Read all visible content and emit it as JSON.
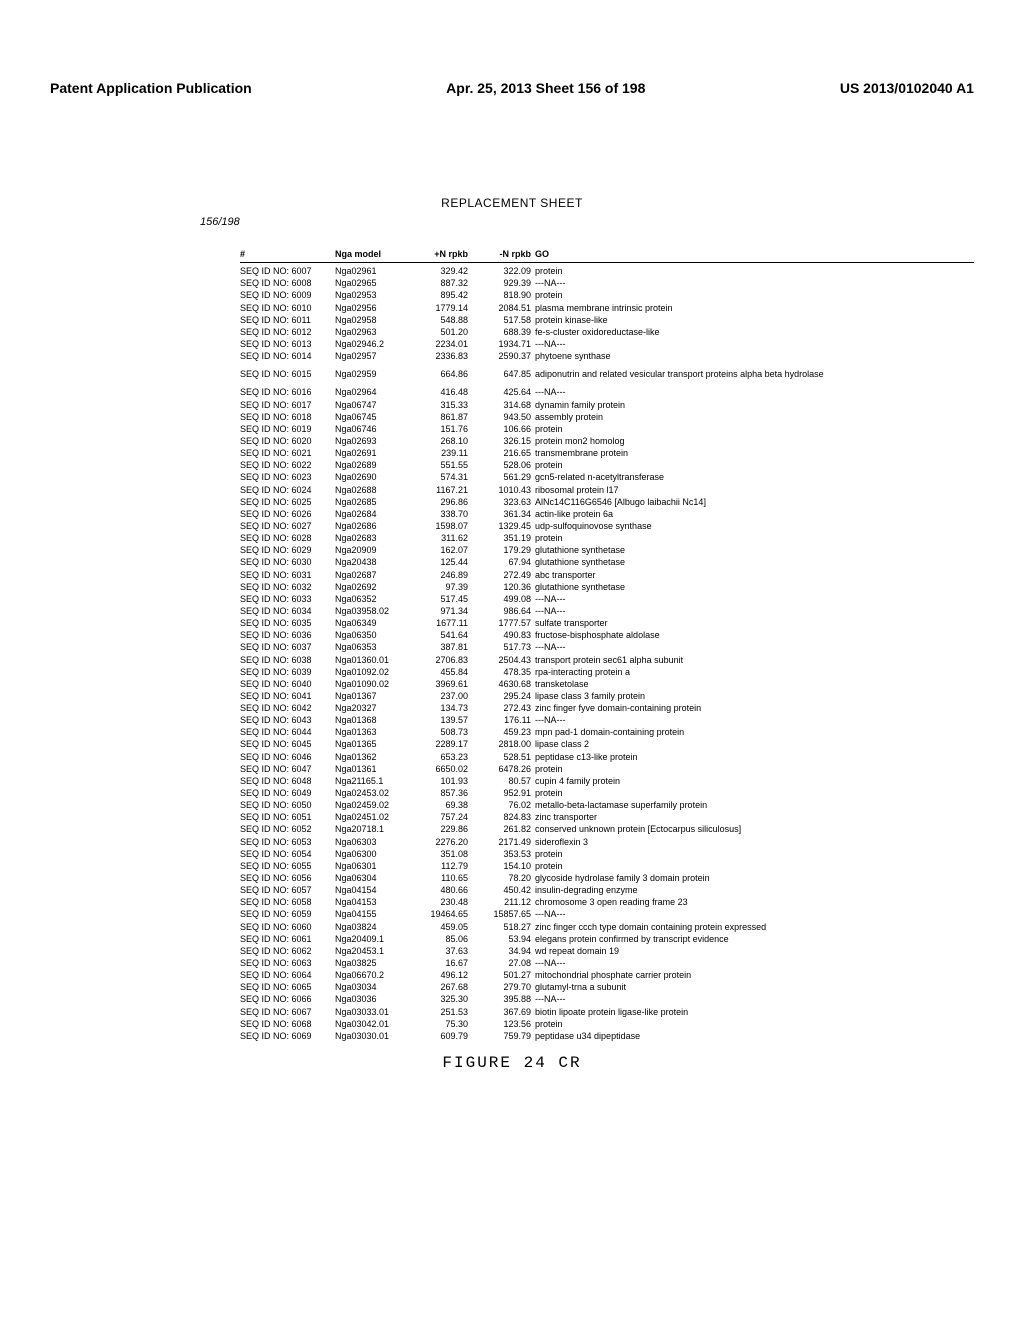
{
  "header": {
    "left": "Patent Application Publication",
    "center": "Apr. 25, 2013  Sheet 156 of 198",
    "right": "US 2013/0102040 A1"
  },
  "replacement_label": "REPLACEMENT SHEET",
  "sheet_number": "156/198",
  "table": {
    "columns": [
      "#",
      "Nga model",
      "+N rpkb",
      "-N rpkb",
      "GO"
    ],
    "rows": [
      [
        "SEQ ID NO: 6007",
        "Nga02961",
        "329.42",
        "322.09",
        "protein"
      ],
      [
        "SEQ ID NO: 6008",
        "Nga02965",
        "887.32",
        "929.39",
        "---NA---"
      ],
      [
        "SEQ ID NO: 6009",
        "Nga02953",
        "895.42",
        "818.90",
        "protein"
      ],
      [
        "SEQ ID NO: 6010",
        "Nga02956",
        "1779.14",
        "2084.51",
        "plasma membrane intrinsic protein"
      ],
      [
        "SEQ ID NO: 6011",
        "Nga02958",
        "548.88",
        "517.58",
        "protein kinase-like"
      ],
      [
        "SEQ ID NO: 6012",
        "Nga02963",
        "501.20",
        "688.39",
        "fe-s-cluster oxidoreductase-like"
      ],
      [
        "SEQ ID NO: 6013",
        "Nga02946.2",
        "2234.01",
        "1934.71",
        "---NA---"
      ],
      [
        "SEQ ID NO: 6014",
        "Nga02957",
        "2336.83",
        "2590.37",
        "phytoene synthase"
      ],
      [
        "SEQ ID NO: 6015",
        "Nga02959",
        "664.86",
        "647.85",
        "adiponutrin and related vesicular transport proteins alpha beta hydrolase"
      ],
      [
        "SEQ ID NO: 6016",
        "Nga02964",
        "416.48",
        "425.64",
        "---NA---"
      ],
      [
        "SEQ ID NO: 6017",
        "Nga06747",
        "315.33",
        "314.68",
        "dynamin family protein"
      ],
      [
        "SEQ ID NO: 6018",
        "Nga06745",
        "861.87",
        "943.50",
        "assembly protein"
      ],
      [
        "SEQ ID NO: 6019",
        "Nga06746",
        "151.76",
        "106.66",
        "protein"
      ],
      [
        "SEQ ID NO: 6020",
        "Nga02693",
        "268.10",
        "326.15",
        "protein mon2 homolog"
      ],
      [
        "SEQ ID NO: 6021",
        "Nga02691",
        "239.11",
        "216.65",
        "transmembrane protein"
      ],
      [
        "SEQ ID NO: 6022",
        "Nga02689",
        "551.55",
        "528.06",
        "protein"
      ],
      [
        "SEQ ID NO: 6023",
        "Nga02690",
        "574.31",
        "561.29",
        "gcn5-related n-acetyltransferase"
      ],
      [
        "SEQ ID NO: 6024",
        "Nga02688",
        "1167.21",
        "1010.43",
        "ribosomal protein l17"
      ],
      [
        "SEQ ID NO: 6025",
        "Nga02685",
        "296.86",
        "323.63",
        "AlNc14C116G6546 [Albugo laibachii Nc14]"
      ],
      [
        "SEQ ID NO: 6026",
        "Nga02684",
        "338.70",
        "361.34",
        "actin-like protein 6a"
      ],
      [
        "SEQ ID NO: 6027",
        "Nga02686",
        "1598.07",
        "1329.45",
        "udp-sulfoquinovose synthase"
      ],
      [
        "SEQ ID NO: 6028",
        "Nga02683",
        "311.62",
        "351.19",
        "protein"
      ],
      [
        "SEQ ID NO: 6029",
        "Nga20909",
        "162.07",
        "179.29",
        "glutathione synthetase"
      ],
      [
        "SEQ ID NO: 6030",
        "Nga20438",
        "125.44",
        "67.94",
        "glutathione synthetase"
      ],
      [
        "SEQ ID NO: 6031",
        "Nga02687",
        "246.89",
        "272.49",
        "abc transporter"
      ],
      [
        "SEQ ID NO: 6032",
        "Nga02692",
        "97.39",
        "120.36",
        "glutathione synthetase"
      ],
      [
        "SEQ ID NO: 6033",
        "Nga06352",
        "517.45",
        "499.08",
        "---NA---"
      ],
      [
        "SEQ ID NO: 6034",
        "Nga03958.02",
        "971.34",
        "986.64",
        "---NA---"
      ],
      [
        "SEQ ID NO: 6035",
        "Nga06349",
        "1677.11",
        "1777.57",
        "sulfate transporter"
      ],
      [
        "SEQ ID NO: 6036",
        "Nga06350",
        "541.64",
        "490.83",
        "fructose-bisphosphate aldolase"
      ],
      [
        "SEQ ID NO: 6037",
        "Nga06353",
        "387.81",
        "517.73",
        "---NA---"
      ],
      [
        "SEQ ID NO: 6038",
        "Nga01360.01",
        "2706.83",
        "2504.43",
        "transport protein sec61 alpha subunit"
      ],
      [
        "SEQ ID NO: 6039",
        "Nga01092.02",
        "455.84",
        "478.35",
        "rpa-interacting protein a"
      ],
      [
        "SEQ ID NO: 6040",
        "Nga01090.02",
        "3969.61",
        "4630.68",
        "transketolase"
      ],
      [
        "SEQ ID NO: 6041",
        "Nga01367",
        "237.00",
        "295.24",
        "lipase class 3 family protein"
      ],
      [
        "SEQ ID NO: 6042",
        "Nga20327",
        "134.73",
        "272.43",
        "zinc finger fyve domain-containing protein"
      ],
      [
        "SEQ ID NO: 6043",
        "Nga01368",
        "139.57",
        "176.11",
        "---NA---"
      ],
      [
        "SEQ ID NO: 6044",
        "Nga01363",
        "508.73",
        "459.23",
        "mpn pad-1 domain-containing protein"
      ],
      [
        "SEQ ID NO: 6045",
        "Nga01365",
        "2289.17",
        "2818.00",
        "lipase class 2"
      ],
      [
        "SEQ ID NO: 6046",
        "Nga01362",
        "653.23",
        "528.51",
        "peptidase c13-like protein"
      ],
      [
        "SEQ ID NO: 6047",
        "Nga01361",
        "6650.02",
        "6478.26",
        "protein"
      ],
      [
        "SEQ ID NO: 6048",
        "Nga21165.1",
        "101.93",
        "80.57",
        "cupin 4 family protein"
      ],
      [
        "SEQ ID NO: 6049",
        "Nga02453.02",
        "857.36",
        "952.91",
        "protein"
      ],
      [
        "SEQ ID NO: 6050",
        "Nga02459.02",
        "69.38",
        "76.02",
        "metallo-beta-lactamase superfamily protein"
      ],
      [
        "SEQ ID NO: 6051",
        "Nga02451.02",
        "757.24",
        "824.83",
        "zinc transporter"
      ],
      [
        "SEQ ID NO: 6052",
        "Nga20718.1",
        "229.86",
        "261.82",
        "conserved unknown protein [Ectocarpus siliculosus]"
      ],
      [
        "SEQ ID NO: 6053",
        "Nga06303",
        "2276.20",
        "2171.49",
        "sideroflexin 3"
      ],
      [
        "SEQ ID NO: 6054",
        "Nga06300",
        "351.08",
        "353.53",
        "protein"
      ],
      [
        "SEQ ID NO: 6055",
        "Nga06301",
        "112.79",
        "154.10",
        "protein"
      ],
      [
        "SEQ ID NO: 6056",
        "Nga06304",
        "110.65",
        "78.20",
        "glycoside hydrolase family 3 domain protein"
      ],
      [
        "SEQ ID NO: 6057",
        "Nga04154",
        "480.66",
        "450.42",
        "insulin-degrading enzyme"
      ],
      [
        "SEQ ID NO: 6058",
        "Nga04153",
        "230.48",
        "211.12",
        "chromosome 3 open reading frame 23"
      ],
      [
        "SEQ ID NO: 6059",
        "Nga04155",
        "19464.65",
        "15857.65",
        "---NA---"
      ],
      [
        "SEQ ID NO: 6060",
        "Nga03824",
        "459.05",
        "518.27",
        "zinc finger ccch type domain containing protein expressed"
      ],
      [
        "SEQ ID NO: 6061",
        "Nga20409.1",
        "85.06",
        "53.94",
        "elegans protein confirmed by transcript evidence"
      ],
      [
        "SEQ ID NO: 6062",
        "Nga20453.1",
        "37.63",
        "34.94",
        "wd repeat domain 19"
      ],
      [
        "SEQ ID NO: 6063",
        "Nga03825",
        "16.67",
        "27.08",
        "---NA---"
      ],
      [
        "SEQ ID NO: 6064",
        "Nga06670.2",
        "496.12",
        "501.27",
        "mitochondrial phosphate carrier protein"
      ],
      [
        "SEQ ID NO: 6065",
        "Nga03034",
        "267.68",
        "279.70",
        "glutamyl-trna a subunit"
      ],
      [
        "SEQ ID NO: 6066",
        "Nga03036",
        "325.30",
        "395.88",
        "---NA---"
      ],
      [
        "SEQ ID NO: 6067",
        "Nga03033.01",
        "251.53",
        "367.69",
        "biotin lipoate protein ligase-like protein"
      ],
      [
        "SEQ ID NO: 6068",
        "Nga03042.01",
        "75.30",
        "123.56",
        "protein"
      ],
      [
        "SEQ ID NO: 6069",
        "Nga03030.01",
        "609.79",
        "759.79",
        "peptidase u34 dipeptidase"
      ]
    ]
  },
  "figure_caption": "FIGURE 24 CR"
}
